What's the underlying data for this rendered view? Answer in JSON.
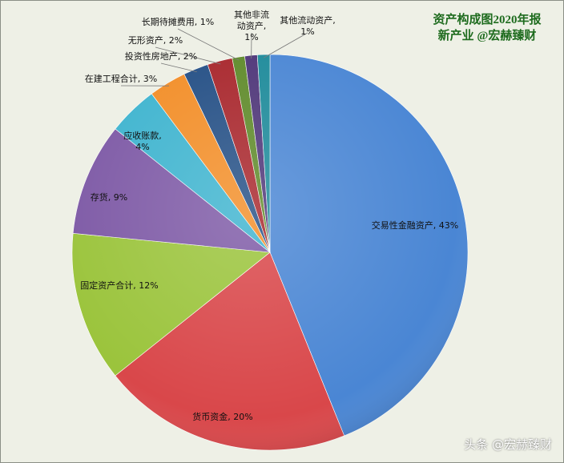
{
  "chart_data": {
    "type": "pie",
    "title": "资产构成图2020年报 新产业 @宏赫臻财",
    "values": [
      43,
      20,
      12,
      9,
      4,
      3,
      2,
      2,
      1,
      1,
      1
    ],
    "value_labels": [
      "交易性金融资产, 43%",
      "货币资金, 20%",
      "固定资产合计, 12%",
      "存货, 9%",
      "应收账款, 4%",
      "在建工程合计, 3%",
      "投资性房地产, 2%",
      "无形资产, 2%",
      "长期待摊费用, 1%",
      "其他非流动资产, 1%",
      "其他流动资产, 1%"
    ],
    "colors": [
      "#4a86d4",
      "#d9474a",
      "#9bc43c",
      "#7e5aa6",
      "#3fb4cf",
      "#f28e28",
      "#244f85",
      "#a8262c",
      "#5f8a2a",
      "#4e3578",
      "#1d8a9a"
    ]
  },
  "watermark": "头条 @宏赫臻财"
}
